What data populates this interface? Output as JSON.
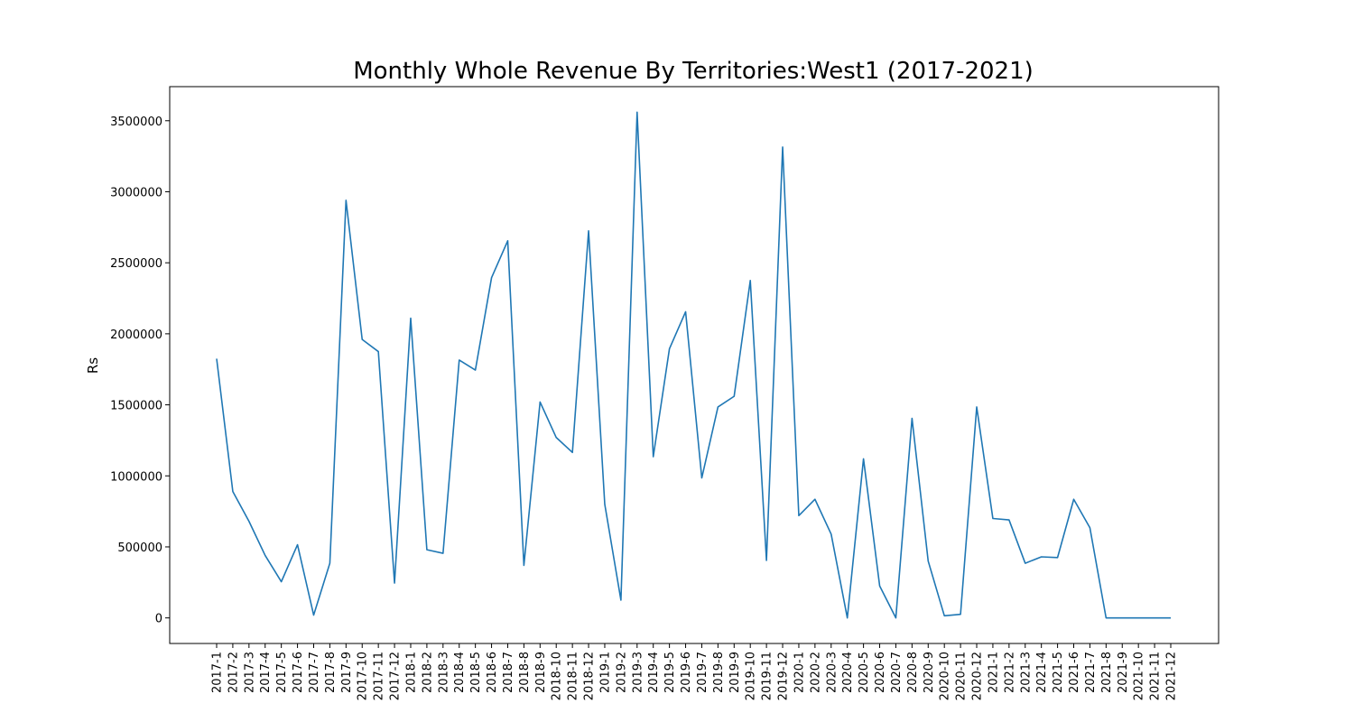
{
  "chart_data": {
    "type": "line",
    "title": "Monthly Whole Revenue By Territories:West1 (2017-2021)",
    "xlabel": "",
    "ylabel": "Rs",
    "ylim": [
      -180000,
      3740000
    ],
    "yticks": [
      0,
      500000,
      1000000,
      1500000,
      2000000,
      2500000,
      3000000,
      3500000
    ],
    "ytick_labels": [
      "0",
      "500000",
      "1000000",
      "1500000",
      "2000000",
      "2500000",
      "3000000",
      "3500000"
    ],
    "grid": false,
    "line_color": "#1f77b4",
    "categories": [
      "2017-1",
      "2017-2",
      "2017-3",
      "2017-4",
      "2017-5",
      "2017-6",
      "2017-7",
      "2017-8",
      "2017-9",
      "2017-10",
      "2017-11",
      "2017-12",
      "2018-1",
      "2018-2",
      "2018-3",
      "2018-4",
      "2018-5",
      "2018-6",
      "2018-7",
      "2018-8",
      "2018-9",
      "2018-10",
      "2018-11",
      "2018-12",
      "2019-1",
      "2019-2",
      "2019-3",
      "2019-4",
      "2019-5",
      "2019-6",
      "2019-7",
      "2019-8",
      "2019-9",
      "2019-10",
      "2019-11",
      "2019-12",
      "2020-1",
      "2020-2",
      "2020-3",
      "2020-4",
      "2020-5",
      "2020-6",
      "2020-7",
      "2020-8",
      "2020-9",
      "2020-10",
      "2020-11",
      "2020-12",
      "2021-1",
      "2021-2",
      "2021-3",
      "2021-4",
      "2021-5",
      "2021-6",
      "2021-7",
      "2021-8",
      "2021-9",
      "2021-10",
      "2021-11",
      "2021-12"
    ],
    "values": [
      1825000,
      890000,
      680000,
      440000,
      255000,
      515000,
      20000,
      385000,
      2940000,
      1960000,
      1875000,
      245000,
      2110000,
      480000,
      455000,
      1815000,
      1745000,
      2395000,
      2655000,
      370000,
      1520000,
      1270000,
      1165000,
      2725000,
      800000,
      125000,
      3560000,
      1135000,
      1895000,
      2155000,
      985000,
      1485000,
      1560000,
      2375000,
      405000,
      3315000,
      720000,
      835000,
      590000,
      0,
      1120000,
      225000,
      0,
      1405000,
      400000,
      15000,
      25000,
      1485000,
      700000,
      690000,
      385000,
      430000,
      425000,
      835000,
      635000,
      0,
      0,
      0,
      0,
      0
    ]
  }
}
